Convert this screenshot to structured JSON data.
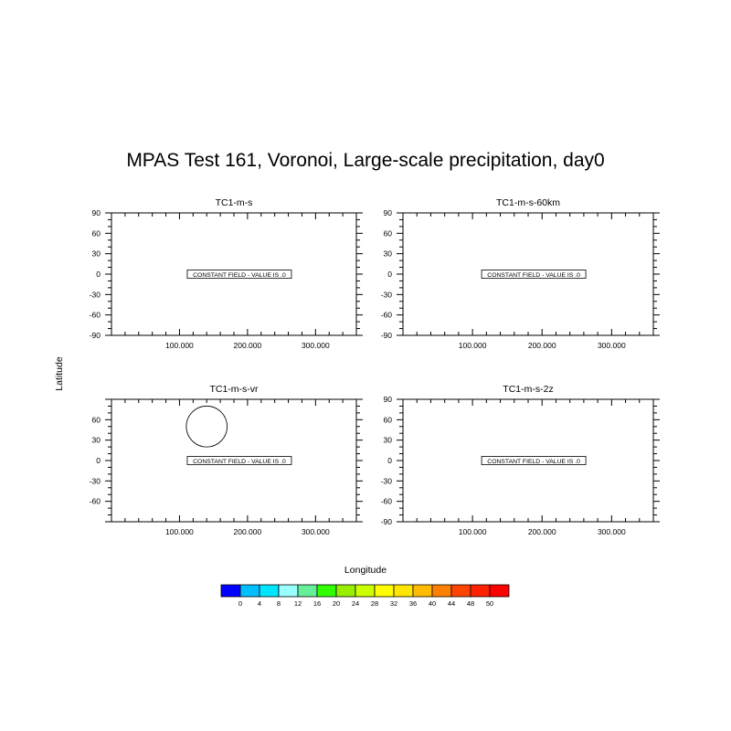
{
  "title": "MPAS Test 161, Voronoi,  Large-scale precipitation, day0",
  "ylabel": "Latitude",
  "xlabel": "Longitude",
  "chart_data": [
    {
      "type": "heatmap",
      "title": "TC1-m-s",
      "xlim": [
        0,
        360
      ],
      "ylim": [
        -90,
        90
      ],
      "x_ticks": [
        100,
        200,
        300
      ],
      "x_tick_labels": [
        "100.000",
        "200.000",
        "300.000"
      ],
      "y_ticks": [
        -90,
        -60,
        -30,
        0,
        30,
        60,
        90
      ],
      "y_tick_labels": [
        "-90",
        "-60",
        "-30",
        "0",
        "30",
        "60",
        "90"
      ],
      "annotation": "CONSTANT FIELD - VALUE IS .0",
      "value": 0
    },
    {
      "type": "heatmap",
      "title": "TC1-m-s-60km",
      "xlim": [
        0,
        360
      ],
      "ylim": [
        -90,
        90
      ],
      "x_ticks": [
        100,
        200,
        300
      ],
      "x_tick_labels": [
        "100.000",
        "200.000",
        "300.000"
      ],
      "y_ticks": [
        -90,
        -60,
        -30,
        0,
        30,
        60,
        90
      ],
      "y_tick_labels": [
        "-90",
        "-60",
        "-30",
        "0",
        "30",
        "60",
        "90"
      ],
      "annotation": "CONSTANT FIELD - VALUE IS .0",
      "value": 0
    },
    {
      "type": "heatmap",
      "title": "TC1-m-s-vr",
      "xlim": [
        0,
        360
      ],
      "ylim": [
        -90,
        90
      ],
      "x_ticks": [
        100,
        200,
        300
      ],
      "x_tick_labels": [
        "100.000",
        "200.000",
        "300.000"
      ],
      "y_ticks": [
        -60,
        -30,
        0,
        30,
        60
      ],
      "y_tick_labels": [
        "-60",
        "-30",
        "0",
        "30",
        "60"
      ],
      "annotation": "CONSTANT FIELD - VALUE IS .0",
      "value": 0,
      "circle": {
        "lon": 140,
        "lat": 50,
        "radius_deg": 30
      }
    },
    {
      "type": "heatmap",
      "title": "TC1-m-s-2z",
      "xlim": [
        0,
        360
      ],
      "ylim": [
        -90,
        90
      ],
      "x_ticks": [
        100,
        200,
        300
      ],
      "x_tick_labels": [
        "100.000",
        "200.000",
        "300.000"
      ],
      "y_ticks": [
        -90,
        -60,
        -30,
        0,
        30,
        60,
        90
      ],
      "y_tick_labels": [
        "-90",
        "-60",
        "-30",
        "0",
        "30",
        "60",
        "90"
      ],
      "annotation": "CONSTANT FIELD - VALUE IS .0",
      "value": 0
    }
  ],
  "colorbar": {
    "labels": [
      "0",
      "4",
      "8",
      "12",
      "16",
      "20",
      "24",
      "28",
      "32",
      "36",
      "40",
      "44",
      "48",
      "50"
    ],
    "colors": [
      "#0000ff",
      "#00bfff",
      "#00e5ff",
      "#99ffff",
      "#66ee99",
      "#33ff00",
      "#99ee00",
      "#ccff00",
      "#ffff00",
      "#ffe600",
      "#ffbb00",
      "#ff8000",
      "#ff4400",
      "#ff2200",
      "#ff0000"
    ]
  }
}
